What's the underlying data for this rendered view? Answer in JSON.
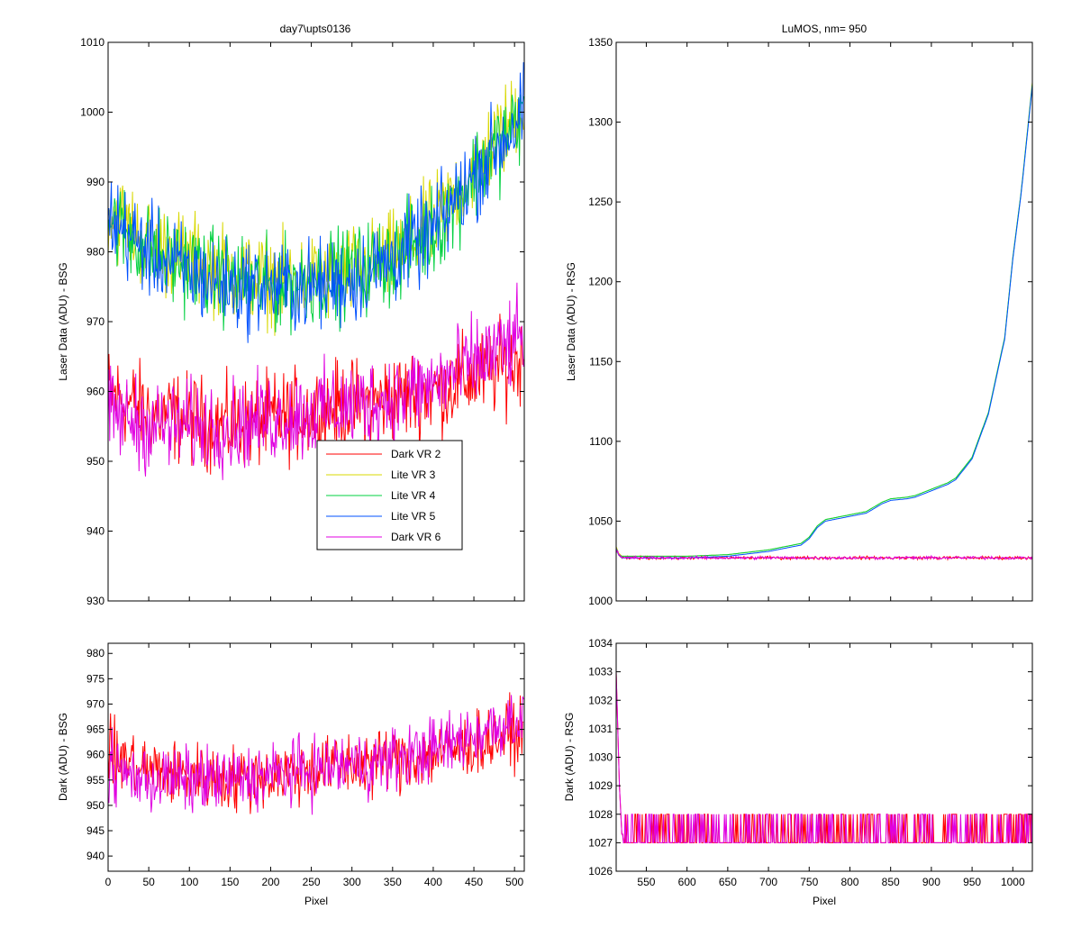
{
  "figure": {
    "background": "#ffffff"
  },
  "series_styles": {
    "Dark VR 2": "#ff0000",
    "Lite VR 3": "#d8d800",
    "Lite VR 4": "#00d040",
    "Lite VR 5": "#0050ff",
    "Dark VR 6": "#e000e0"
  },
  "chart_data": [
    {
      "id": "top-left",
      "type": "line",
      "title": "day7\\upts0136",
      "xlabel": "",
      "ylabel": "Laser Data (ADU) - BSG",
      "xlim": [
        0,
        512
      ],
      "ylim": [
        930,
        1010
      ],
      "xticks": [
        0,
        50,
        100,
        150,
        200,
        250,
        300,
        350,
        400,
        450,
        500
      ],
      "yticks": [
        930,
        940,
        950,
        960,
        970,
        980,
        990,
        1000,
        1010
      ],
      "show_xtick_labels": false,
      "legend": {
        "placement": "center-bottom",
        "entries": [
          "Dark VR 2",
          "Lite VR 3",
          "Lite VR 4",
          "Lite VR 5",
          "Dark VR 6"
        ]
      },
      "series": [
        {
          "name": "Dark VR 2",
          "x": [
            0,
            50,
            100,
            150,
            200,
            250,
            300,
            350,
            400,
            450,
            500,
            511
          ],
          "base": [
            960,
            957,
            956,
            955,
            956,
            957,
            958,
            959,
            960,
            962,
            964,
            965
          ],
          "noise": 4
        },
        {
          "name": "Lite VR 3",
          "x": [
            0,
            50,
            100,
            150,
            200,
            250,
            300,
            350,
            400,
            450,
            500,
            511
          ],
          "base": [
            986,
            981,
            979,
            977,
            976,
            976,
            977,
            979,
            984,
            992,
            999,
            1001
          ],
          "noise": 4
        },
        {
          "name": "Lite VR 4",
          "x": [
            0,
            50,
            100,
            150,
            200,
            250,
            300,
            350,
            400,
            450,
            500,
            511
          ],
          "base": [
            985,
            980,
            978,
            976,
            975,
            976,
            977,
            979,
            983,
            991,
            998,
            1000
          ],
          "noise": 4
        },
        {
          "name": "Lite VR 5",
          "x": [
            0,
            50,
            100,
            150,
            200,
            250,
            300,
            350,
            400,
            450,
            500,
            511
          ],
          "base": [
            985,
            980,
            977,
            975,
            975,
            975,
            976,
            979,
            983,
            991,
            998,
            1000
          ],
          "noise": 4
        },
        {
          "name": "Dark VR 6",
          "x": [
            0,
            50,
            100,
            150,
            200,
            250,
            300,
            350,
            400,
            450,
            500,
            511
          ],
          "base": [
            957,
            955,
            955,
            955,
            956,
            957,
            958,
            959,
            961,
            964,
            967,
            968
          ],
          "noise": 4
        }
      ]
    },
    {
      "id": "top-right",
      "type": "line",
      "title": "LuMOS, nm= 950",
      "xlabel": "",
      "ylabel": "Laser Data (ADU) - RSG",
      "xlim": [
        513,
        1024
      ],
      "ylim": [
        1000,
        1350
      ],
      "xticks": [
        550,
        600,
        650,
        700,
        750,
        800,
        850,
        900,
        950,
        1000
      ],
      "yticks": [
        1000,
        1050,
        1100,
        1150,
        1200,
        1250,
        1300,
        1350
      ],
      "show_xtick_labels": false,
      "series": [
        {
          "name": "Dark VR 2",
          "x": [
            513,
            516,
            520,
            540,
            600,
            700,
            800,
            900,
            1000,
            1024
          ],
          "base": [
            1032,
            1029,
            1027,
            1027,
            1027,
            1027,
            1027,
            1027,
            1027,
            1027
          ],
          "noise": 0.6
        },
        {
          "name": "Lite VR 3",
          "x": [
            513,
            516,
            520,
            540,
            600,
            650,
            700,
            720,
            740,
            750,
            760,
            770,
            800,
            820,
            830,
            840,
            850,
            870,
            880,
            900,
            920,
            930,
            950,
            970,
            990,
            1000,
            1010,
            1024
          ],
          "base": [
            1034,
            1030,
            1028,
            1028,
            1028,
            1029,
            1032,
            1034,
            1036,
            1040,
            1047,
            1051,
            1054,
            1056,
            1059,
            1062,
            1064,
            1065,
            1066,
            1070,
            1074,
            1077,
            1090,
            1118,
            1165,
            1215,
            1255,
            1325
          ],
          "noise": 0
        },
        {
          "name": "Lite VR 4",
          "x": [
            513,
            516,
            520,
            540,
            600,
            650,
            700,
            720,
            740,
            750,
            760,
            770,
            800,
            820,
            830,
            840,
            850,
            870,
            880,
            900,
            920,
            930,
            950,
            970,
            990,
            1000,
            1010,
            1024
          ],
          "base": [
            1033,
            1029,
            1028,
            1028,
            1028,
            1029,
            1032,
            1034,
            1036,
            1040,
            1047,
            1051,
            1054,
            1056,
            1059,
            1062,
            1064,
            1065,
            1066,
            1070,
            1074,
            1077,
            1090,
            1118,
            1165,
            1215,
            1255,
            1324
          ],
          "noise": 0
        },
        {
          "name": "Lite VR 5",
          "x": [
            513,
            516,
            520,
            540,
            600,
            650,
            700,
            720,
            740,
            750,
            760,
            770,
            800,
            820,
            830,
            840,
            850,
            870,
            880,
            900,
            920,
            930,
            950,
            970,
            990,
            1000,
            1010,
            1024
          ],
          "base": [
            1033,
            1029,
            1027,
            1027,
            1027,
            1028,
            1031,
            1033,
            1035,
            1039,
            1046,
            1050,
            1053,
            1055,
            1058,
            1061,
            1063,
            1064,
            1065,
            1069,
            1073,
            1076,
            1089,
            1117,
            1164,
            1214,
            1254,
            1323
          ],
          "noise": 0
        },
        {
          "name": "Dark VR 6",
          "x": [
            513,
            516,
            520,
            540,
            600,
            700,
            800,
            900,
            1000,
            1024
          ],
          "base": [
            1033,
            1029,
            1027,
            1027,
            1027,
            1027,
            1027,
            1027,
            1027,
            1027
          ],
          "noise": 0.6
        }
      ]
    },
    {
      "id": "bottom-left",
      "type": "line",
      "title": "",
      "xlabel": "Pixel",
      "ylabel": "Dark (ADU) - BSG",
      "xlim": [
        0,
        512
      ],
      "ylim": [
        937,
        982
      ],
      "xticks": [
        0,
        50,
        100,
        150,
        200,
        250,
        300,
        350,
        400,
        450,
        500
      ],
      "yticks": [
        940,
        945,
        950,
        955,
        960,
        965,
        970,
        975,
        980
      ],
      "show_xtick_labels": true,
      "series": [
        {
          "name": "Dark VR 2",
          "x": [
            0,
            50,
            100,
            150,
            200,
            250,
            300,
            350,
            400,
            450,
            500,
            511
          ],
          "base": [
            960,
            957,
            956,
            955,
            956,
            957,
            958,
            959,
            960,
            962,
            964,
            965
          ],
          "noise": 4
        },
        {
          "name": "Dark VR 6",
          "x": [
            0,
            50,
            100,
            150,
            200,
            250,
            300,
            350,
            400,
            450,
            500,
            511
          ],
          "base": [
            957,
            955,
            955,
            955,
            956,
            957,
            958,
            959,
            961,
            964,
            967,
            968
          ],
          "noise": 4
        }
      ]
    },
    {
      "id": "bottom-right",
      "type": "line",
      "title": "",
      "xlabel": "Pixel",
      "ylabel": "Dark (ADU) - RSG",
      "xlim": [
        513,
        1024
      ],
      "ylim": [
        1026,
        1034
      ],
      "xticks": [
        550,
        600,
        650,
        700,
        750,
        800,
        850,
        900,
        950,
        1000
      ],
      "yticks": [
        1026,
        1027,
        1028,
        1029,
        1030,
        1031,
        1032,
        1033,
        1034
      ],
      "show_xtick_labels": true,
      "series": [
        {
          "name": "Dark VR 2",
          "x": [
            513,
            515,
            517,
            520,
            540,
            600,
            700,
            800,
            900,
            1000,
            1024
          ],
          "base": [
            1033,
            1031,
            1029,
            1027.3,
            1027.3,
            1027.3,
            1027.3,
            1027.3,
            1027.3,
            1027.3,
            1027.3
          ],
          "noise": 0,
          "binary": [
            1027,
            1028
          ]
        },
        {
          "name": "Dark VR 6",
          "x": [
            513,
            515,
            517,
            520,
            540,
            600,
            700,
            800,
            900,
            1000,
            1024
          ],
          "base": [
            1033,
            1031,
            1029,
            1027.3,
            1027.3,
            1027.3,
            1027.3,
            1027.3,
            1027.3,
            1027.3,
            1027.3
          ],
          "noise": 0,
          "binary": [
            1027,
            1028
          ]
        }
      ]
    }
  ]
}
